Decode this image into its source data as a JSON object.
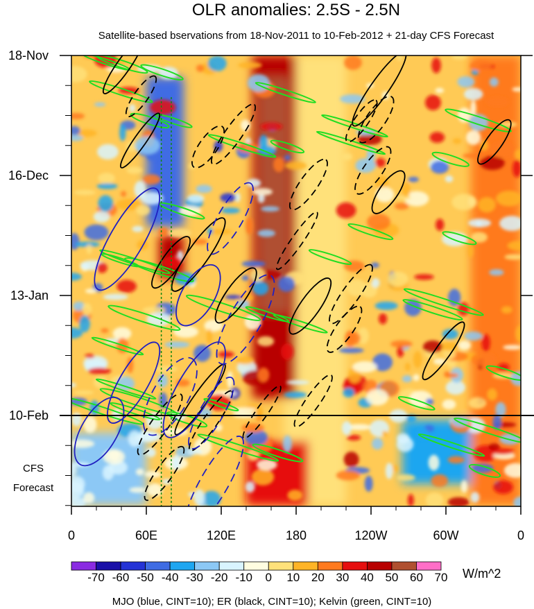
{
  "chart_data": {
    "type": "heatmap",
    "title": "OLR anomalies: 2.5S - 2.5N",
    "subtitle": "Satellite-based bservations from 18-Nov-2011 to 10-Feb-2012 + 21-day CFS Forecast",
    "x_axis": {
      "ticks": [
        {
          "label": "0",
          "lon": 0
        },
        {
          "label": "60E",
          "lon": 60
        },
        {
          "label": "120E",
          "lon": 120
        },
        {
          "label": "180",
          "lon": 180
        },
        {
          "label": "120W",
          "lon": 240
        },
        {
          "label": "60W",
          "lon": 300
        },
        {
          "label": "0",
          "lon": 360
        }
      ],
      "range": [
        0,
        360
      ]
    },
    "y_axis": {
      "ticks": [
        {
          "label": "18-Nov",
          "day": 0
        },
        {
          "label": "16-Dec",
          "day": 28
        },
        {
          "label": "13-Jan",
          "day": 56
        },
        {
          "label": "10-Feb",
          "day": 84
        }
      ],
      "range_days": [
        0,
        105
      ],
      "forecast_start_day": 84,
      "forecast_label_lines": [
        "CFS",
        "Forecast"
      ]
    },
    "colorbar": {
      "unit": "W/m^2",
      "levels": [
        -70,
        -60,
        -50,
        -40,
        -30,
        -20,
        -10,
        0,
        10,
        20,
        30,
        40,
        50,
        60,
        70
      ],
      "colors": [
        "#8a2be2",
        "#1a10a8",
        "#2433d6",
        "#3f6ce3",
        "#1ea6f0",
        "#8cc8f5",
        "#d9f4ff",
        "#fffde0",
        "#ffe17a",
        "#ffb426",
        "#ff7a1e",
        "#e60f0f",
        "#b80000",
        "#b05030",
        "#ff6ec7"
      ]
    },
    "contour_legend": "MJO (blue, CINT=10); ER (black, CINT=10); Kelvin (green, CINT=10)",
    "regions": [
      {
        "lon": [
          170,
          220
        ],
        "days": [
          0,
          105
        ],
        "value": 5
      },
      {
        "lon": [
          145,
          180
        ],
        "days": [
          0,
          80
        ],
        "value": 40
      },
      {
        "lon": [
          150,
          175
        ],
        "days": [
          5,
          60
        ],
        "value": 55
      },
      {
        "lon": [
          60,
          90
        ],
        "days": [
          5,
          40
        ],
        "value": -45
      },
      {
        "lon": [
          70,
          90
        ],
        "days": [
          42,
          52
        ],
        "value": 45
      },
      {
        "lon": [
          0,
          60
        ],
        "days": [
          88,
          105
        ],
        "value": -30
      },
      {
        "lon": [
          140,
          190
        ],
        "days": [
          90,
          105
        ],
        "value": 35
      },
      {
        "lon": [
          265,
          340
        ],
        "days": [
          85,
          100
        ],
        "value": -35
      },
      {
        "lon": [
          320,
          360
        ],
        "days": [
          0,
          105
        ],
        "value": 20
      }
    ]
  }
}
